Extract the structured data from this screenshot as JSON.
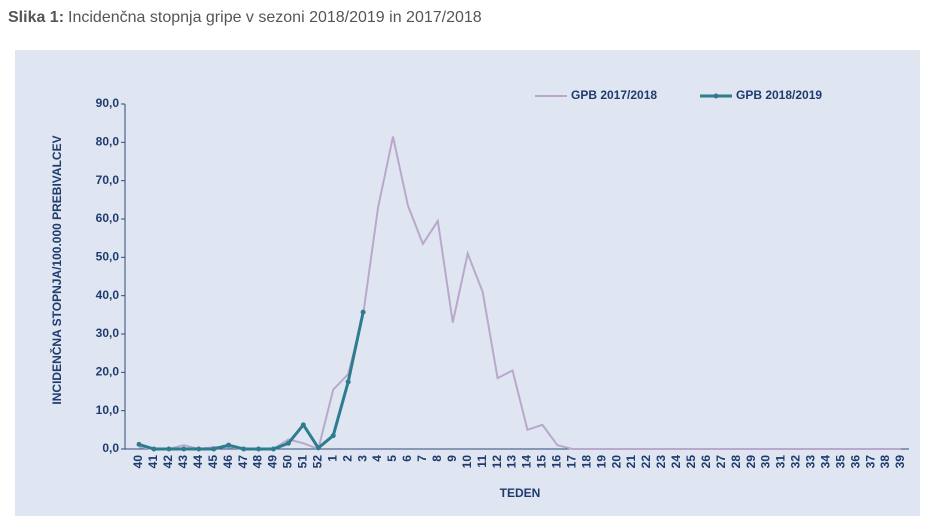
{
  "chart_data": {
    "type": "line",
    "title_prefix": "Slika 1:",
    "title": "Incidenčna stopnja gripe v sezoni 2018/2019 in 2017/2018",
    "x_label": "TEDEN",
    "y_label": "INCIDENČNA STOPNJA/100.000 PREBIVALCEV",
    "categories": [
      "40",
      "41",
      "42",
      "43",
      "44",
      "45",
      "46",
      "47",
      "48",
      "49",
      "50",
      "51",
      "52",
      "1",
      "2",
      "3",
      "4",
      "5",
      "6",
      "7",
      "8",
      "9",
      "10",
      "11",
      "12",
      "13",
      "14",
      "15",
      "16",
      "17",
      "18",
      "19",
      "20",
      "21",
      "22",
      "23",
      "24",
      "25",
      "26",
      "27",
      "28",
      "29",
      "30",
      "31",
      "32",
      "33",
      "34",
      "35",
      "36",
      "37",
      "38",
      "39"
    ],
    "series": [
      {
        "name": "GPB 2017/2018",
        "color": "#b9a8cc",
        "markers": false,
        "values": [
          0.5,
          0,
          0,
          1,
          0,
          0.5,
          0.5,
          0,
          0,
          0,
          2.5,
          1.5,
          0,
          15.5,
          19.5,
          35,
          63,
          81.5,
          63.5,
          53.5,
          59.5,
          33,
          51,
          41,
          18.5,
          20.5,
          5,
          6.3,
          1,
          0,
          0,
          0,
          0,
          0,
          0,
          0,
          0,
          0,
          0,
          0,
          0,
          0,
          0,
          0,
          0,
          0,
          0,
          0,
          0,
          0,
          0,
          0
        ]
      },
      {
        "name": "GPB 2018/2019",
        "color": "#2e7d8f",
        "markers": true,
        "values": [
          1.2,
          0,
          0,
          0,
          0,
          0,
          1,
          0,
          0,
          0,
          1.5,
          6.3,
          0.3,
          3.5,
          17.5,
          35.7,
          null,
          null,
          null,
          null,
          null,
          null,
          null,
          null,
          null,
          null,
          null,
          null,
          null,
          null,
          null,
          null,
          null,
          null,
          null,
          null,
          null,
          null,
          null,
          null,
          null,
          null,
          null,
          null,
          null,
          null,
          null,
          null,
          null,
          null,
          null,
          null
        ]
      }
    ],
    "ylim": [
      0,
      90
    ],
    "yticks": [
      {
        "value": 0,
        "label": "0,0"
      },
      {
        "value": 10,
        "label": "10,0"
      },
      {
        "value": 20,
        "label": "20,0"
      },
      {
        "value": 30,
        "label": "30,0"
      },
      {
        "value": 40,
        "label": "40,0"
      },
      {
        "value": 50,
        "label": "50,0"
      },
      {
        "value": 60,
        "label": "60,0"
      },
      {
        "value": 70,
        "label": "70,0"
      },
      {
        "value": 80,
        "label": "80,0"
      },
      {
        "value": 90,
        "label": "90,0"
      }
    ],
    "grid": false,
    "legend": "top-right"
  }
}
